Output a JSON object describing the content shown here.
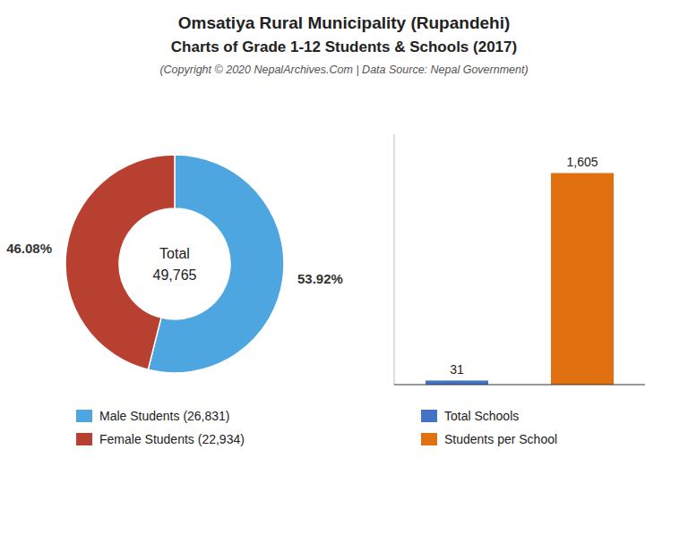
{
  "chart_data": [
    {
      "type": "donut",
      "title": "Omsatiya Rural Municipality (Rupandehi)",
      "subtitle": "Charts of Grade 1-12 Students & Schools (2017)",
      "annotations": [
        "(Copyright © 2020 NepalArchives.Com | Data Source: Nepal Government)",
        "Total",
        "49,765"
      ],
      "categories": [
        "Male Students (26,831)",
        "Female Students (22,934)"
      ],
      "values": [
        53.92,
        46.08
      ],
      "value_labels": [
        "53.92%",
        "46.08%"
      ],
      "colors": [
        "#4da6e0",
        "#b84030"
      ],
      "data_labels": true,
      "legend": "bottom"
    },
    {
      "type": "bar",
      "categories": [
        "Total Schools",
        "Students per School"
      ],
      "values": [
        31,
        1605
      ],
      "value_labels": [
        "31",
        "1,605"
      ],
      "colors": [
        "#4472c4",
        "#e07010"
      ],
      "ylim": [
        0,
        1900
      ],
      "data_labels": true,
      "tick_labels": false,
      "legend": "bottom"
    }
  ]
}
